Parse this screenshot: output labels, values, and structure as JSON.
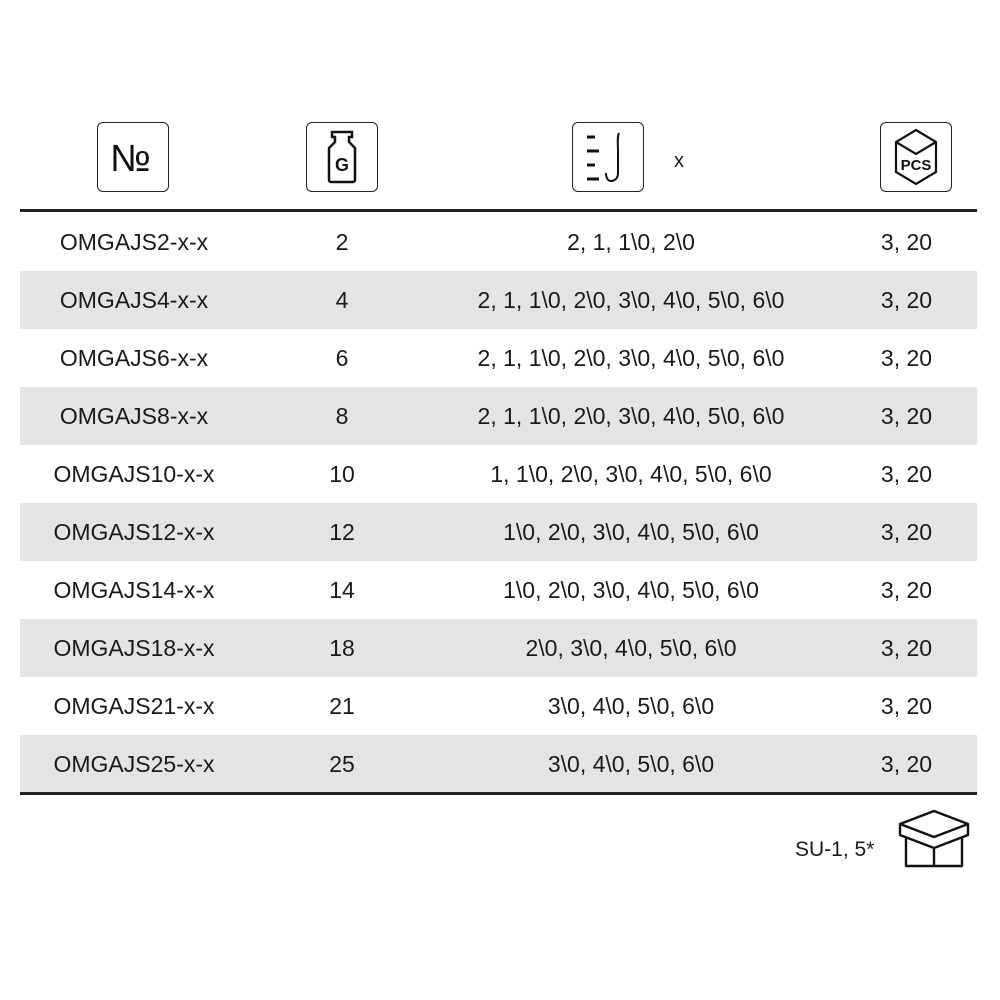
{
  "header": {
    "icons": [
      "number-sign-icon",
      "weight-icon",
      "hook-size-icon",
      "pcs-box-icon"
    ],
    "number_symbol": "№",
    "weight_letter": "G",
    "hook_suffix": "x",
    "pcs_label": "PCS"
  },
  "rows": [
    {
      "code": "OMGAJS2-x-x",
      "weight": "2",
      "sizes": "2, 1, 1\\0, 2\\0",
      "pcs": "3, 20"
    },
    {
      "code": "OMGAJS4-x-x",
      "weight": "4",
      "sizes": "2, 1, 1\\0, 2\\0, 3\\0, 4\\0, 5\\0, 6\\0",
      "pcs": "3, 20"
    },
    {
      "code": "OMGAJS6-x-x",
      "weight": "6",
      "sizes": "2, 1, 1\\0, 2\\0, 3\\0, 4\\0, 5\\0, 6\\0",
      "pcs": "3, 20"
    },
    {
      "code": "OMGAJS8-x-x",
      "weight": "8",
      "sizes": "2, 1, 1\\0, 2\\0, 3\\0, 4\\0, 5\\0, 6\\0",
      "pcs": "3, 20"
    },
    {
      "code": "OMGAJS10-x-x",
      "weight": "10",
      "sizes": "1, 1\\0, 2\\0, 3\\0, 4\\0, 5\\0, 6\\0",
      "pcs": "3, 20"
    },
    {
      "code": "OMGAJS12-x-x",
      "weight": "12",
      "sizes": "1\\0, 2\\0, 3\\0, 4\\0, 5\\0, 6\\0",
      "pcs": "3, 20"
    },
    {
      "code": "OMGAJS14-x-x",
      "weight": "14",
      "sizes": "1\\0, 2\\0, 3\\0, 4\\0, 5\\0, 6\\0",
      "pcs": "3, 20"
    },
    {
      "code": "OMGAJS18-x-x",
      "weight": "18",
      "sizes": "2\\0, 3\\0, 4\\0, 5\\0, 6\\0",
      "pcs": "3, 20"
    },
    {
      "code": "OMGAJS21-x-x",
      "weight": "21",
      "sizes": "3\\0, 4\\0, 5\\0, 6\\0",
      "pcs": "3, 20"
    },
    {
      "code": "OMGAJS25-x-x",
      "weight": "25",
      "sizes": "3\\0, 4\\0, 5\\0, 6\\0",
      "pcs": "3, 20"
    }
  ],
  "footer": {
    "text": "SU-1, 5*",
    "icon": "box-icon"
  },
  "colors": {
    "stripe": "#e4e4e4",
    "ink": "#1a1a1a"
  }
}
